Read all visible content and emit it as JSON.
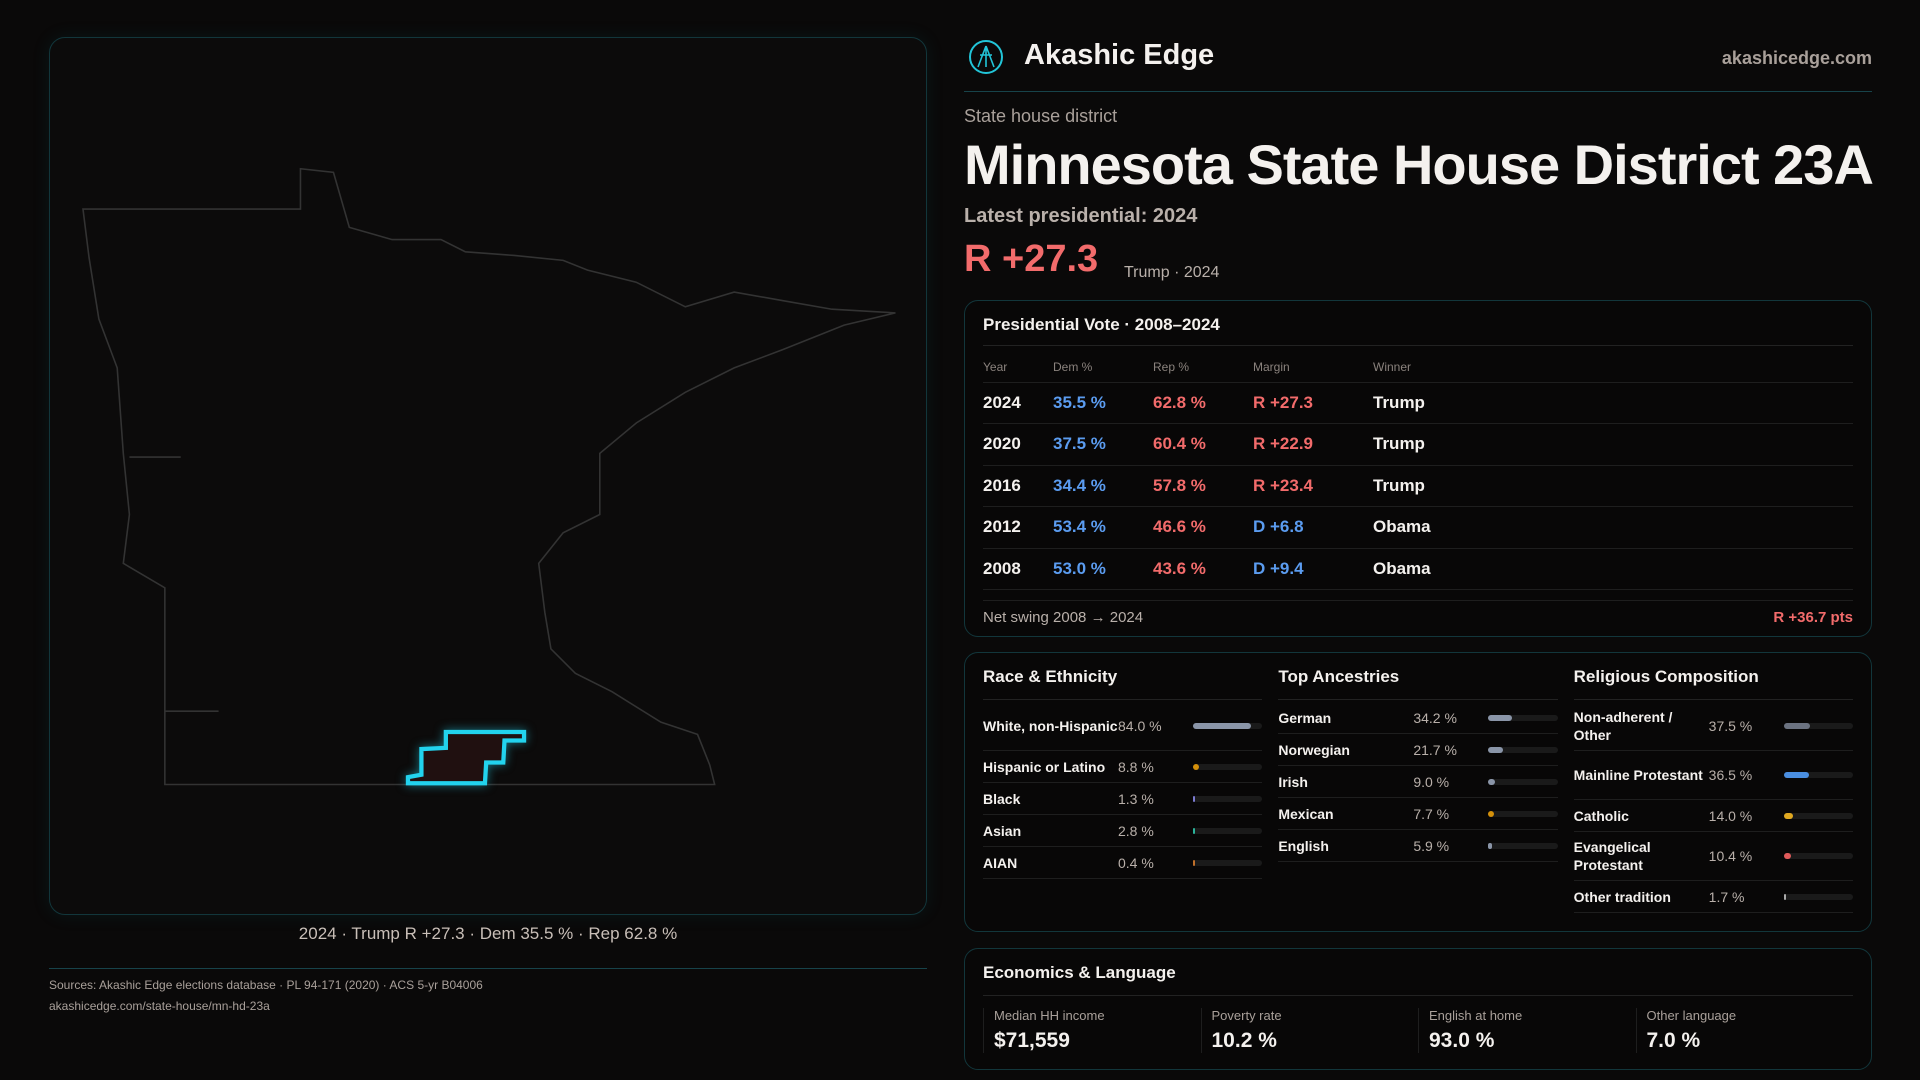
{
  "brand": {
    "name": "Akashic Edge",
    "site": "akashicedge.com",
    "logo_icon": "akashic-edge-logo"
  },
  "kicker": "State house district",
  "title": "Minnesota State House District 23A",
  "latest": "Latest presidential: 2024",
  "margin": {
    "value": "R +27.3",
    "sub": "Trump · 2024"
  },
  "map": {
    "caption": "2024 · Trump R +27.3 · Dem 35.5 % · Rep 62.8 %",
    "highlight_color": "#22d3ee"
  },
  "presidential": {
    "title": "Presidential Vote · 2008–2024",
    "headers": [
      "Year",
      "Dem %",
      "Rep %",
      "Margin",
      "Winner"
    ],
    "rows": [
      {
        "year": "2024",
        "dem": "35.5 %",
        "rep": "62.8 %",
        "margin": "R +27.3",
        "party": "R",
        "winner": "Trump"
      },
      {
        "year": "2020",
        "dem": "37.5 %",
        "rep": "60.4 %",
        "margin": "R +22.9",
        "party": "R",
        "winner": "Trump"
      },
      {
        "year": "2016",
        "dem": "34.4 %",
        "rep": "57.8 %",
        "margin": "R +23.4",
        "party": "R",
        "winner": "Trump"
      },
      {
        "year": "2012",
        "dem": "53.4 %",
        "rep": "46.6 %",
        "margin": "D +6.8",
        "party": "D",
        "winner": "Obama"
      },
      {
        "year": "2008",
        "dem": "53.0 %",
        "rep": "43.6 %",
        "margin": "D +9.4",
        "party": "D",
        "winner": "Obama"
      }
    ],
    "swing_label": "Net swing 2008 → 2024",
    "swing_value": "R +36.7 pts"
  },
  "demographics": [
    {
      "title": "Race & Ethnicity",
      "items": [
        {
          "label": "White, non-Hispanic",
          "pct": "84.0 %",
          "value": 84.0,
          "color": "#8a95a8"
        },
        {
          "label": "Hispanic or Latino",
          "pct": "8.8 %",
          "value": 8.8,
          "color": "#d4900a"
        },
        {
          "label": "Black",
          "pct": "1.3 %",
          "value": 1.3,
          "color": "#7b7bd0"
        },
        {
          "label": "Asian",
          "pct": "2.8 %",
          "value": 2.8,
          "color": "#2bb39a"
        },
        {
          "label": "AIAN",
          "pct": "0.4 %",
          "value": 0.4,
          "color": "#c0702a"
        }
      ]
    },
    {
      "title": "Top Ancestries",
      "items": [
        {
          "label": "German",
          "pct": "34.2 %",
          "value": 34.2,
          "color": "#8a95a8"
        },
        {
          "label": "Norwegian",
          "pct": "21.7 %",
          "value": 21.7,
          "color": "#8a95a8"
        },
        {
          "label": "Irish",
          "pct": "9.0 %",
          "value": 9.0,
          "color": "#8a95a8"
        },
        {
          "label": "Mexican",
          "pct": "7.7 %",
          "value": 7.7,
          "color": "#d4900a"
        },
        {
          "label": "English",
          "pct": "5.9 %",
          "value": 5.9,
          "color": "#8a95a8"
        }
      ]
    },
    {
      "title": "Religious Composition",
      "items": [
        {
          "label": "Non-adherent / Other",
          "pct": "37.5 %",
          "value": 37.5,
          "color": "#6b7280"
        },
        {
          "label": "Mainline Protestant",
          "pct": "36.5 %",
          "value": 36.5,
          "color": "#4a8ee0"
        },
        {
          "label": "Catholic",
          "pct": "14.0 %",
          "value": 14.0,
          "color": "#e0a820"
        },
        {
          "label": "Evangelical Protestant",
          "pct": "10.4 %",
          "value": 10.4,
          "color": "#e05a5a"
        },
        {
          "label": "Other tradition",
          "pct": "1.7 %",
          "value": 1.7,
          "color": "#aaaaaa"
        }
      ]
    }
  ],
  "economics": {
    "title": "Economics & Language",
    "stats": [
      {
        "label": "Median HH income",
        "value": "$71,559"
      },
      {
        "label": "Poverty rate",
        "value": "10.2 %"
      },
      {
        "label": "English at home",
        "value": "93.0 %"
      },
      {
        "label": "Other language",
        "value": "7.0 %"
      }
    ]
  },
  "source": {
    "line1": "Sources: Akashic Edge elections database · PL 94-171 (2020) · ACS 5-yr B04006",
    "line2": "akashicedge.com/state-house/mn-hd-23a"
  }
}
